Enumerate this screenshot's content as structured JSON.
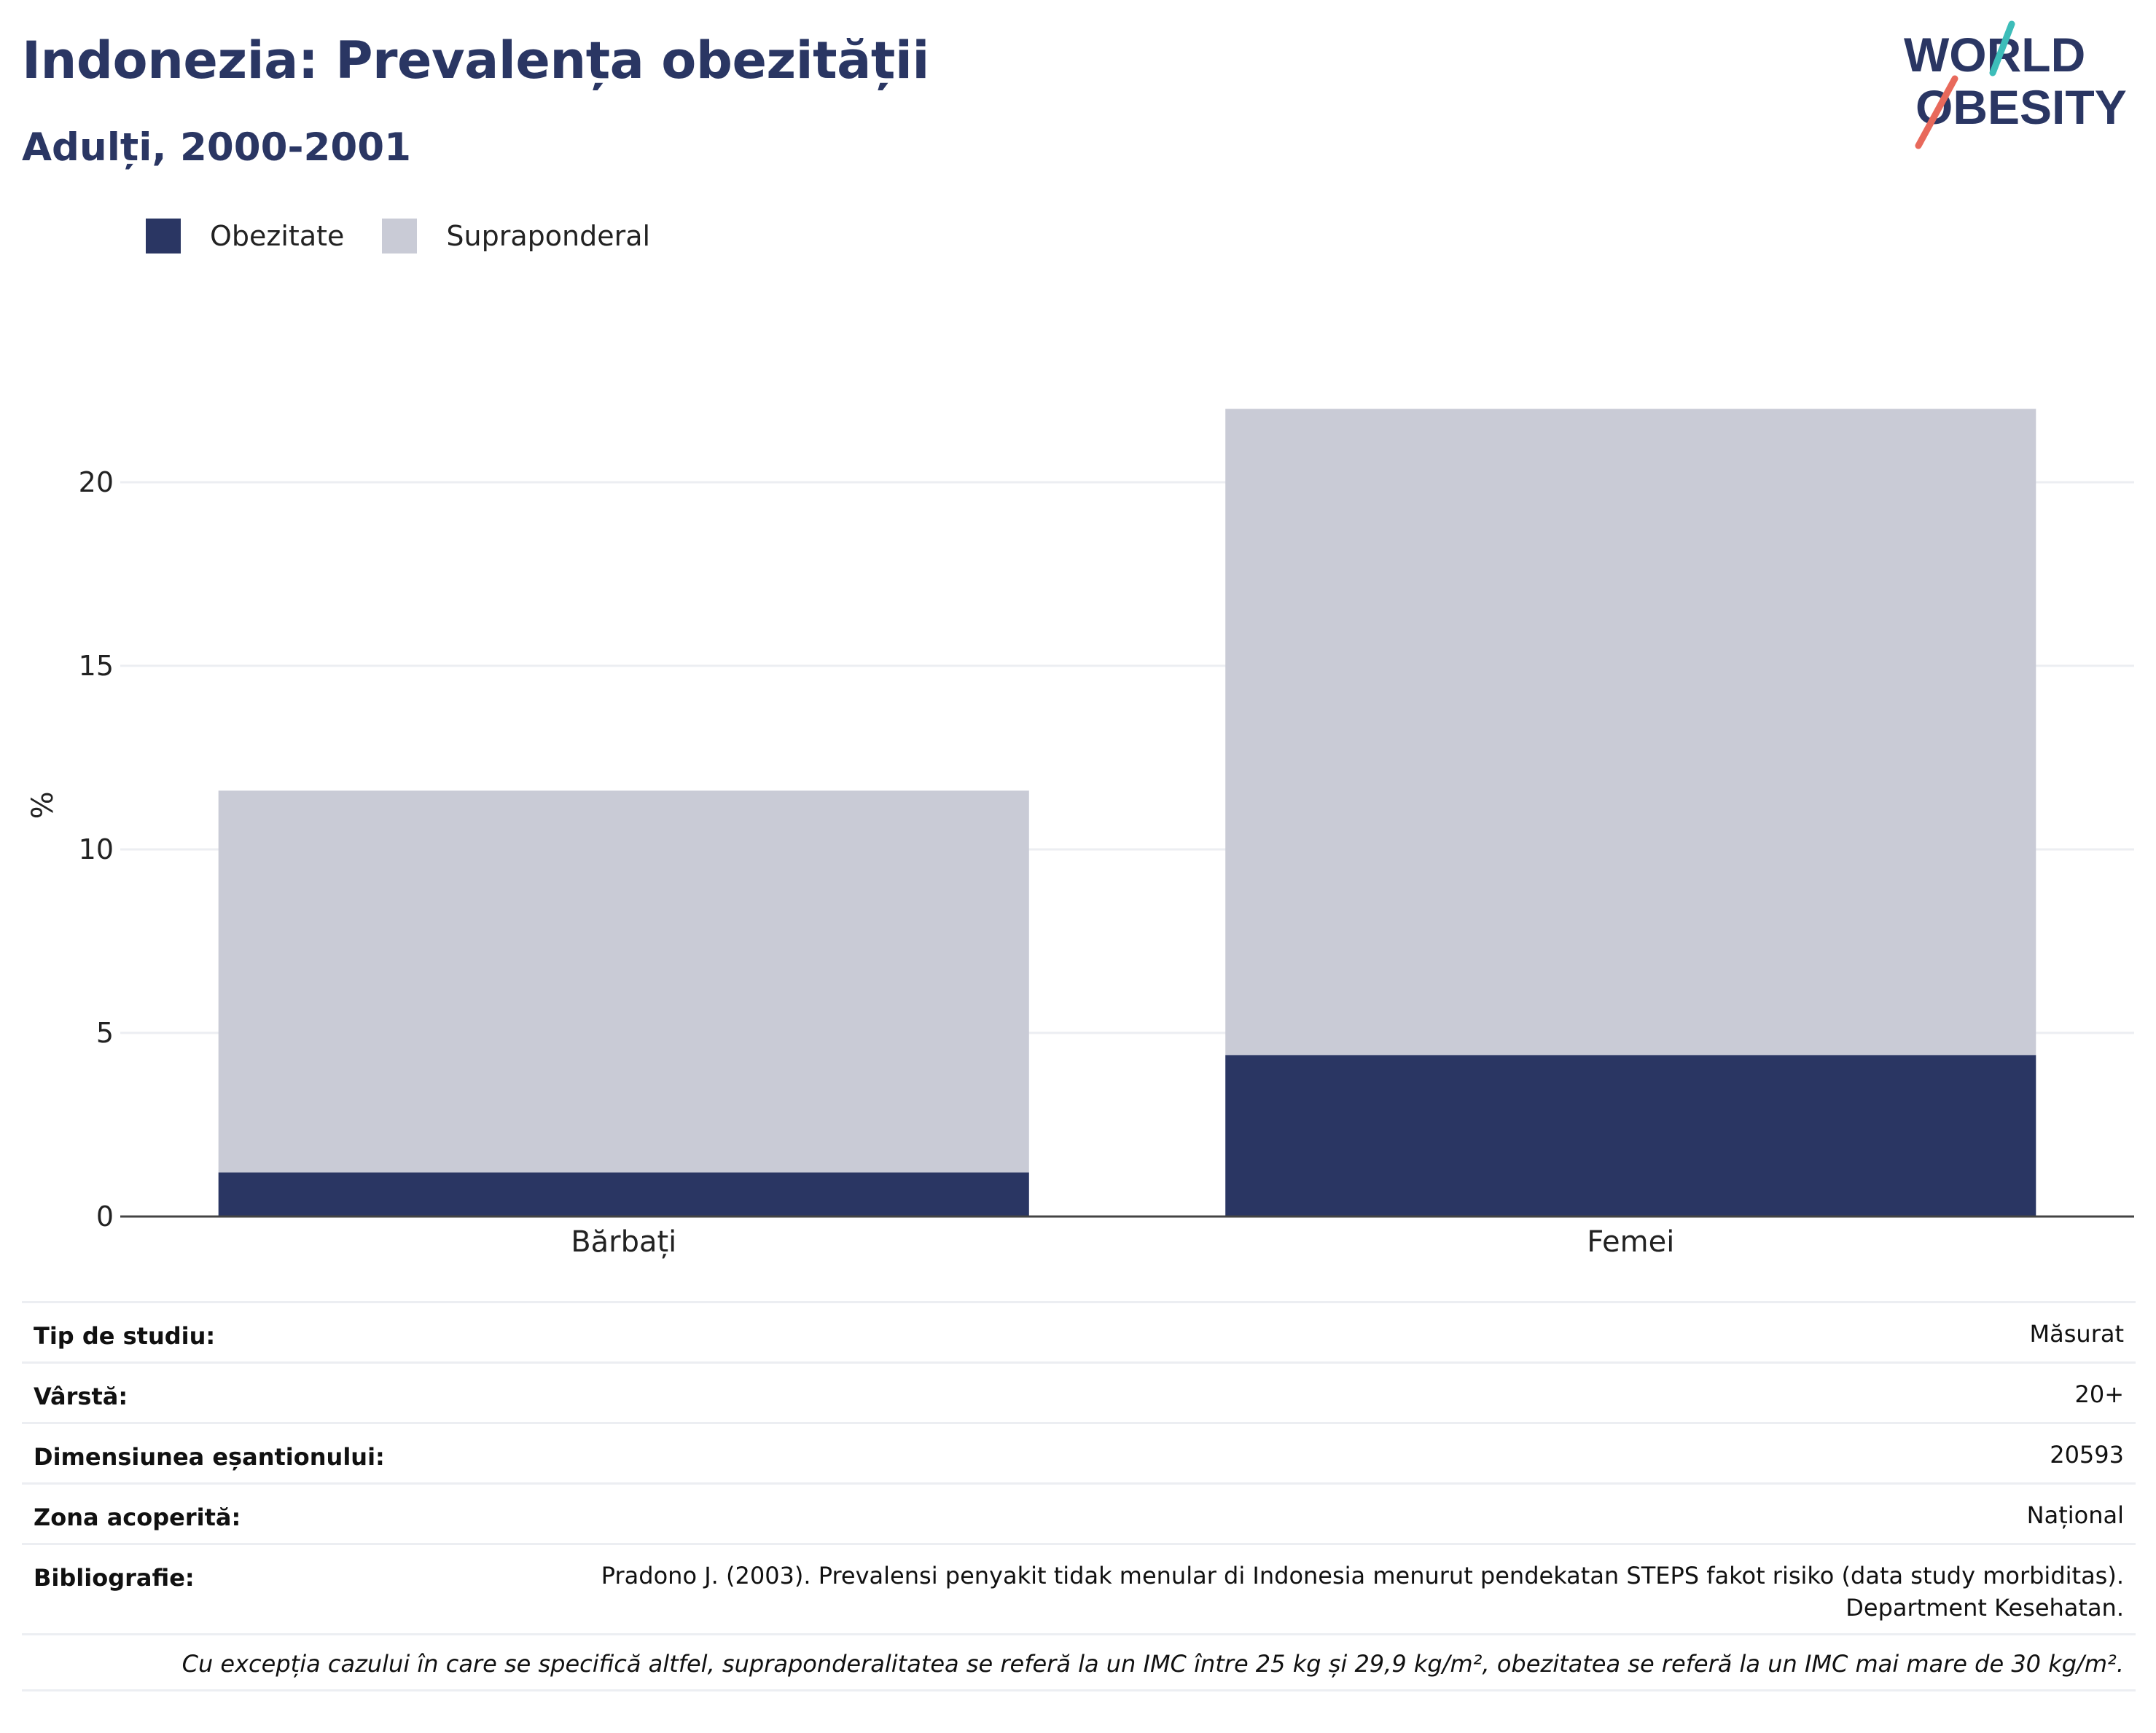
{
  "header": {
    "title": "Indonezia: Prevalența obezității",
    "subtitle": "Adulți, 2000-2001",
    "logo_text_line1": "WORLD",
    "logo_text_line2": "OBESITY"
  },
  "colors": {
    "obesity": "#2a3663",
    "overweight": "#c9cbd6",
    "title": "#2a3663",
    "logo_teal": "#3dbdb9",
    "logo_coral": "#e8695b"
  },
  "legend": [
    {
      "label": "Obezitate",
      "color": "#2a3663"
    },
    {
      "label": "Supraponderal",
      "color": "#c9cbd6"
    }
  ],
  "chart_data": {
    "type": "bar",
    "stacked": true,
    "categories": [
      "Bărbați",
      "Femei"
    ],
    "series": [
      {
        "name": "Obezitate",
        "values": [
          1.2,
          4.4
        ]
      },
      {
        "name": "Supraponderal",
        "values": [
          10.4,
          17.6
        ]
      }
    ],
    "ylabel": "%",
    "ylim": [
      0,
      23.7
    ],
    "yticks": [
      0,
      5,
      10,
      15,
      20
    ],
    "grid": true,
    "legend_position": "top-left"
  },
  "meta": {
    "study_type_label": "Tip de studiu:",
    "study_type_value": "Măsurat",
    "age_label": "Vârstă:",
    "age_value": "20+",
    "sample_label": "Dimensiunea eșantionului:",
    "sample_value": "20593",
    "area_label": "Zona acoperită:",
    "area_value": "Național",
    "biblio_label": "Bibliografie:",
    "biblio_line1": "Pradono J. (2003). Prevalensi penyakit tidak menular di Indonesia menurut pendekatan STEPS fakot risiko (data study morbiditas).",
    "biblio_line2": "Department Kesehatan.",
    "footnote": "Cu excepția cazului în care se specifică altfel, supraponderalitatea se referă la un IMC între 25 kg și 29,9 kg/m², obezitatea se referă la un IMC mai mare de 30 kg/m²."
  }
}
